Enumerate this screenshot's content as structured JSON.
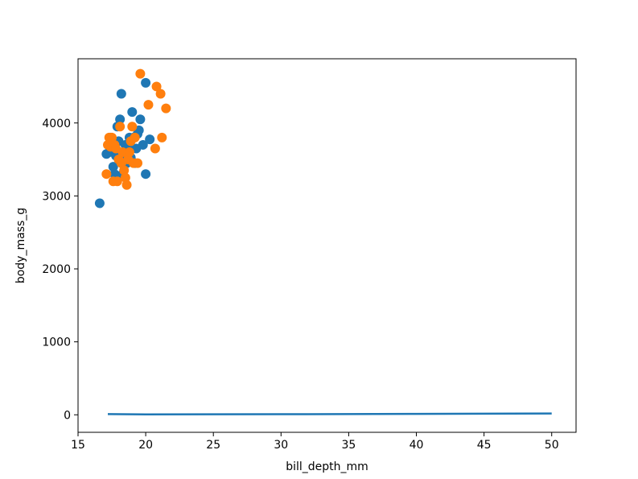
{
  "chart_data": {
    "type": "scatter",
    "title": "",
    "xlabel": "bill_depth_mm",
    "ylabel": "body_mass_g",
    "xlim": [
      15,
      51.8
    ],
    "ylim": [
      -240,
      4880
    ],
    "xticks": [
      15,
      20,
      25,
      30,
      35,
      40,
      45,
      50
    ],
    "yticks": [
      0,
      1000,
      2000,
      3000,
      4000
    ],
    "grid": false,
    "colors": {
      "blue": "#1f77b4",
      "orange": "#ff7f0e"
    },
    "series": [
      {
        "kind": "scatter",
        "color": "#1f77b4",
        "points": [
          [
            16.6,
            2900
          ],
          [
            17.1,
            3575
          ],
          [
            17.3,
            3600
          ],
          [
            17.4,
            3800
          ],
          [
            17.5,
            3650
          ],
          [
            17.6,
            3400
          ],
          [
            17.7,
            3300
          ],
          [
            17.8,
            3550
          ],
          [
            17.9,
            3950
          ],
          [
            18.0,
            3750
          ],
          [
            18.1,
            4050
          ],
          [
            18.2,
            4400
          ],
          [
            18.3,
            3300
          ],
          [
            18.4,
            3550
          ],
          [
            18.5,
            3700
          ],
          [
            18.6,
            3450
          ],
          [
            18.7,
            3650
          ],
          [
            18.8,
            3800
          ],
          [
            18.9,
            3525
          ],
          [
            19.0,
            4150
          ],
          [
            19.1,
            3800
          ],
          [
            19.2,
            3450
          ],
          [
            19.3,
            3650
          ],
          [
            19.4,
            3850
          ],
          [
            19.5,
            3900
          ],
          [
            19.6,
            4050
          ],
          [
            19.8,
            3700
          ],
          [
            20.0,
            4550
          ],
          [
            20.0,
            3300
          ],
          [
            20.3,
            3775
          ]
        ]
      },
      {
        "kind": "scatter",
        "color": "#ff7f0e",
        "points": [
          [
            17.1,
            3300
          ],
          [
            17.2,
            3700
          ],
          [
            17.3,
            3800
          ],
          [
            17.4,
            3675
          ],
          [
            17.5,
            3800
          ],
          [
            17.6,
            3200
          ],
          [
            17.7,
            3700
          ],
          [
            17.8,
            3650
          ],
          [
            17.9,
            3200
          ],
          [
            18.0,
            3500
          ],
          [
            18.1,
            3950
          ],
          [
            18.2,
            3450
          ],
          [
            18.3,
            3600
          ],
          [
            18.4,
            3350
          ],
          [
            18.5,
            3250
          ],
          [
            18.6,
            3150
          ],
          [
            18.7,
            3500
          ],
          [
            18.8,
            3600
          ],
          [
            18.9,
            3750
          ],
          [
            19.0,
            3950
          ],
          [
            19.1,
            3450
          ],
          [
            19.2,
            3800
          ],
          [
            19.4,
            3450
          ],
          [
            19.6,
            4675
          ],
          [
            20.2,
            4250
          ],
          [
            20.7,
            3650
          ],
          [
            20.8,
            4500
          ],
          [
            21.1,
            4400
          ],
          [
            21.2,
            3800
          ],
          [
            21.5,
            4200
          ]
        ]
      },
      {
        "kind": "line",
        "color": "#1f77b4",
        "points": [
          [
            17.2,
            10
          ],
          [
            20,
            5
          ],
          [
            30,
            8
          ],
          [
            40,
            12
          ],
          [
            50,
            18
          ]
        ]
      }
    ]
  }
}
